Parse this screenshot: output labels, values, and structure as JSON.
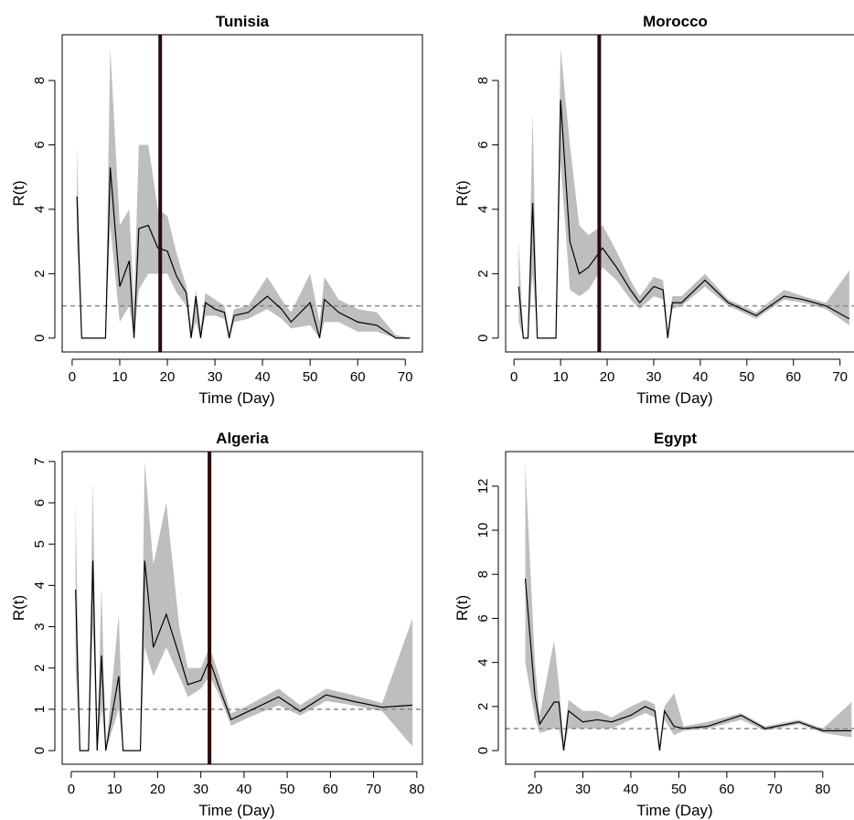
{
  "chart_data": [
    {
      "type": "line",
      "title": "Tunisia",
      "xlabel": "Time (Day)",
      "ylabel": "R(t)",
      "x": [
        1,
        2,
        7,
        8,
        10,
        12,
        13,
        14,
        16,
        18,
        20,
        22,
        24,
        25,
        26,
        27,
        28,
        30,
        32,
        33,
        34,
        37,
        41,
        44,
        46,
        50,
        52,
        53,
        56,
        60,
        64,
        68,
        71
      ],
      "values": [
        4.4,
        0,
        0,
        5.3,
        1.6,
        2.4,
        0,
        3.4,
        3.5,
        2.8,
        2.7,
        1.9,
        1.4,
        0,
        1.3,
        0,
        1.1,
        0.9,
        0.8,
        0,
        0.7,
        0.8,
        1.3,
        0.9,
        0.5,
        1.1,
        0,
        1.2,
        0.8,
        0.5,
        0.4,
        0,
        0
      ],
      "lower": [
        3,
        0,
        0,
        3.5,
        0.5,
        1,
        0,
        1.5,
        2,
        2,
        2,
        1.4,
        1,
        0,
        0.5,
        0,
        0.7,
        0.7,
        0.6,
        0,
        0.5,
        0.6,
        0.9,
        0.6,
        0.3,
        0.4,
        0,
        0.5,
        0.5,
        0.2,
        0.2,
        0,
        0
      ],
      "upper": [
        6,
        0,
        0,
        9,
        3.5,
        4,
        1,
        6,
        6,
        4,
        3.8,
        2.6,
        1.6,
        0.3,
        1.5,
        0.3,
        1.4,
        1.2,
        1,
        0.2,
        0.9,
        1,
        1.9,
        1.2,
        0.8,
        2,
        0.5,
        1.9,
        1.2,
        0.9,
        0.8,
        0.1,
        0
      ],
      "color": "#000000",
      "band_color": "#bebebe",
      "hline": 1,
      "hline_color": "#888888",
      "vline": 18.5,
      "vline_color": "#2b0a0a",
      "xlim": [
        -2.1,
        73.6
      ],
      "ylim": [
        -0.43,
        9.42
      ],
      "xticks": [
        0,
        10,
        20,
        30,
        40,
        50,
        60,
        70
      ],
      "yticks": [
        0,
        2,
        4,
        6,
        8
      ]
    },
    {
      "type": "line",
      "title": "Morocco",
      "xlabel": "Time (Day)",
      "ylabel": "R(t)",
      "x": [
        1,
        2,
        3,
        4,
        5,
        9,
        10,
        12,
        14,
        16,
        19,
        22,
        25,
        27,
        30,
        32,
        33,
        34,
        36,
        41,
        46,
        52,
        58,
        62,
        67,
        72
      ],
      "values": [
        1.6,
        0,
        0,
        4.2,
        0,
        0,
        7.4,
        3,
        2,
        2.2,
        2.8,
        2.2,
        1.5,
        1.1,
        1.6,
        1.5,
        0,
        1.1,
        1.1,
        1.8,
        1.1,
        0.7,
        1.3,
        1.2,
        1,
        0.6
      ],
      "lower": [
        0.5,
        0,
        0,
        2,
        0,
        0,
        5.5,
        1.5,
        1.3,
        1.5,
        2.2,
        1.8,
        1.2,
        0.9,
        1.3,
        1.2,
        0,
        0.9,
        1,
        1.6,
        1,
        0.6,
        1.2,
        1.1,
        0.9,
        0.4
      ],
      "upper": [
        3,
        0,
        0,
        7,
        0,
        0,
        9,
        6,
        3.5,
        3.2,
        3.5,
        2.7,
        1.8,
        1.3,
        1.9,
        1.8,
        0.3,
        1.3,
        1.3,
        2,
        1.2,
        0.8,
        1.5,
        1.3,
        1.1,
        2.1
      ],
      "color": "#000000",
      "band_color": "#bebebe",
      "hline": 1,
      "hline_color": "#888888",
      "vline": 18.3,
      "vline_color": "#2b0a0a",
      "xlim": [
        -1.8,
        73.2
      ],
      "ylim": [
        -0.43,
        9.42
      ],
      "xticks": [
        0,
        10,
        20,
        30,
        40,
        50,
        60,
        70
      ],
      "yticks": [
        0,
        2,
        4,
        6,
        8
      ]
    },
    {
      "type": "line",
      "title": "Algeria",
      "xlabel": "Time (Day)",
      "ylabel": "R(t)",
      "x": [
        1,
        2,
        4,
        5,
        6,
        7,
        8,
        11,
        12,
        16,
        17,
        19,
        22,
        25,
        27,
        30,
        32,
        34,
        37,
        41,
        48,
        53,
        59,
        65,
        72,
        79
      ],
      "values": [
        3.9,
        0,
        0,
        4.6,
        0,
        2.3,
        0,
        1.8,
        0,
        0,
        4.6,
        2.5,
        3.3,
        2.3,
        1.6,
        1.7,
        2.2,
        1.6,
        0.75,
        0.95,
        1.3,
        0.95,
        1.35,
        1.2,
        1.05,
        1.1
      ],
      "lower": [
        2,
        0,
        0,
        3,
        0,
        1,
        0,
        1,
        0,
        0,
        2.5,
        1.8,
        2.5,
        1.8,
        1.3,
        1.5,
        1.8,
        1.4,
        0.6,
        0.8,
        1.1,
        0.85,
        1.2,
        1.1,
        0.95,
        0.1
      ],
      "upper": [
        6,
        0,
        0,
        6.5,
        0,
        4,
        0,
        3.3,
        0,
        0,
        7,
        4.5,
        6,
        3,
        2,
        2,
        2.5,
        1.9,
        0.9,
        1.1,
        1.5,
        1.1,
        1.5,
        1.35,
        1.15,
        3.2
      ],
      "color": "#000000",
      "band_color": "#bebebe",
      "hline": 1,
      "hline_color": "#888888",
      "vline": 32,
      "vline_color": "#2b0a0a",
      "xlim": [
        -2.1,
        81.3
      ],
      "ylim": [
        -0.33,
        7.24
      ],
      "xticks": [
        0,
        10,
        20,
        30,
        40,
        50,
        60,
        70,
        80
      ],
      "yticks": [
        0,
        1,
        2,
        3,
        4,
        5,
        6,
        7
      ]
    },
    {
      "type": "line",
      "title": "Egypt",
      "xlabel": "Time (Day)",
      "ylabel": "R(t)",
      "x": [
        18,
        20,
        21,
        24,
        25,
        26,
        27,
        30,
        33,
        36,
        40,
        43,
        45,
        46,
        47,
        49,
        51,
        56,
        63,
        68,
        75,
        80,
        86
      ],
      "values": [
        7.8,
        2.5,
        1.2,
        2.2,
        2.2,
        0,
        1.8,
        1.3,
        1.4,
        1.3,
        1.6,
        2,
        1.8,
        0,
        1.8,
        1.1,
        1,
        1.1,
        1.6,
        1,
        1.3,
        0.9,
        0.9
      ],
      "lower": [
        4,
        1.5,
        0.8,
        1,
        1,
        0,
        1,
        1,
        1,
        1,
        1.4,
        1.7,
        1.5,
        0,
        1.4,
        0.7,
        0.9,
        1,
        1.4,
        0.9,
        1.2,
        0.8,
        0.6
      ],
      "upper": [
        13,
        4,
        1.6,
        5,
        3,
        0.3,
        2.3,
        1.8,
        1.8,
        1.5,
        2,
        2.3,
        2.1,
        0.3,
        2,
        2.6,
        1.1,
        1.3,
        1.7,
        1.1,
        1.4,
        1,
        2.2
      ],
      "color": "#000000",
      "band_color": "#bebebe",
      "hline": 1,
      "hline_color": "#888888",
      "xlim": [
        13.9,
        86.7
      ],
      "ylim": [
        -0.62,
        13.57
      ],
      "xticks": [
        20,
        30,
        40,
        50,
        60,
        70,
        80
      ],
      "yticks": [
        0,
        2,
        4,
        6,
        8,
        10,
        12
      ]
    }
  ]
}
